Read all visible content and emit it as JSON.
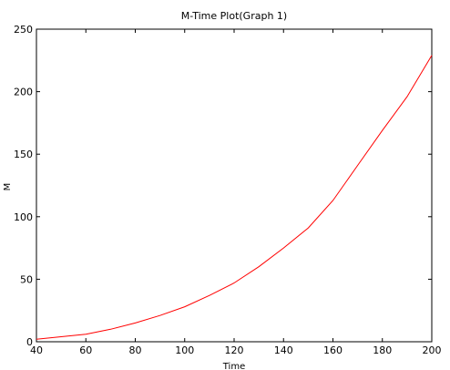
{
  "chart_data": {
    "type": "line",
    "title": "M-Time Plot(Graph 1)",
    "xlabel": "Time",
    "ylabel": "M",
    "xlim": [
      40,
      200
    ],
    "ylim": [
      0,
      250
    ],
    "x_ticks": [
      40,
      60,
      80,
      100,
      120,
      140,
      160,
      180,
      200
    ],
    "y_ticks": [
      0,
      50,
      100,
      150,
      200,
      250
    ],
    "grid": false,
    "series": [
      {
        "color": "#ff0000",
        "x": [
          40,
          50,
          60,
          70,
          80,
          90,
          100,
          110,
          120,
          130,
          140,
          150,
          160,
          170,
          180,
          190,
          200
        ],
        "y": [
          2,
          4,
          6,
          10,
          15,
          21,
          28,
          37,
          47,
          60,
          75,
          91,
          113,
          141,
          169,
          196,
          229
        ]
      }
    ]
  }
}
